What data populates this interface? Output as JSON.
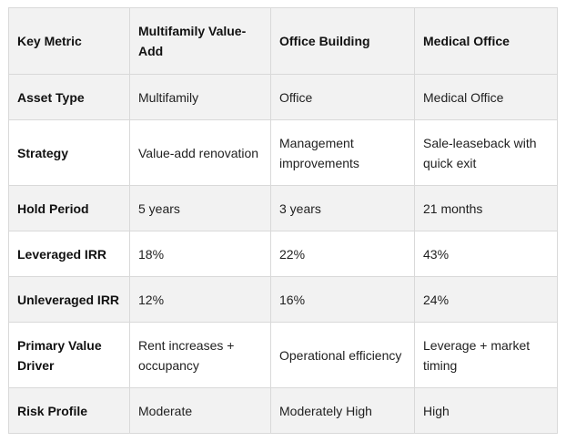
{
  "table": {
    "headers": [
      "Key Metric",
      "Multifamily Value-Add",
      "Office Building",
      "Medical Office"
    ],
    "rows": [
      {
        "metric": "Asset Type",
        "values": [
          "Multifamily",
          "Office",
          "Medical Office"
        ]
      },
      {
        "metric": "Strategy",
        "values": [
          "Value-add renovation",
          "Management improvements",
          "Sale-leaseback with quick exit"
        ]
      },
      {
        "metric": "Hold Period",
        "values": [
          "5 years",
          "3 years",
          "21 months"
        ]
      },
      {
        "metric": "Leveraged IRR",
        "values": [
          "18%",
          "22%",
          "43%"
        ]
      },
      {
        "metric": "Unleveraged IRR",
        "values": [
          "12%",
          "16%",
          "24%"
        ]
      },
      {
        "metric": "Primary Value Driver",
        "values": [
          "Rent increases + occupancy",
          "Operational efficiency",
          "Leverage + market timing"
        ]
      },
      {
        "metric": "Risk Profile",
        "values": [
          "Moderate",
          "Moderately High",
          "High"
        ]
      }
    ]
  },
  "colors": {
    "header_bg": "#f2f2f2",
    "alt_row_bg": "#f2f2f2",
    "border": "#d9d9d9"
  }
}
